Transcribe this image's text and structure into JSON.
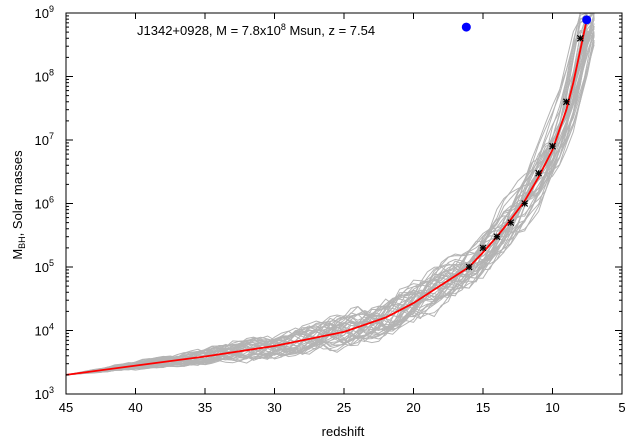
{
  "chart_data": {
    "type": "line",
    "title": "",
    "xlabel": "redshift",
    "ylabel": {
      "main": "M",
      "subscript": "BH",
      "rest": ", Solar masses"
    },
    "x_reversed": true,
    "xlim": [
      45,
      5
    ],
    "ylim": [
      1000,
      1000000000
    ],
    "y_scale": "log",
    "x_ticks": [
      "45",
      "40",
      "35",
      "30",
      "25",
      "20",
      "15",
      "10",
      "5"
    ],
    "y_ticks": [
      {
        "base": "10",
        "exp": "3"
      },
      {
        "base": "10",
        "exp": "4"
      },
      {
        "base": "10",
        "exp": "5"
      },
      {
        "base": "10",
        "exp": "6"
      },
      {
        "base": "10",
        "exp": "7"
      },
      {
        "base": "10",
        "exp": "8"
      },
      {
        "base": "10",
        "exp": "9"
      }
    ],
    "grid": false,
    "annotation": {
      "prefix": "J1342+0928, M = 7.8x10",
      "sup": "8",
      "suffix": " Msun, z = 7.54"
    },
    "colors": {
      "fit": "#ff0000",
      "trees": "#b4b4b4",
      "points": "#0000ff",
      "markers": "#000000"
    },
    "series": [
      {
        "kind": "fit",
        "x": [
          45,
          40,
          35,
          30,
          25,
          22,
          20,
          18,
          16,
          15,
          14,
          13,
          12,
          11,
          10,
          9,
          8.5,
          8,
          7.54
        ],
        "y": [
          2000,
          2800,
          3900,
          5700,
          9500,
          16000,
          27000,
          52000,
          100000,
          170000,
          300000,
          560000,
          1100000,
          2600000,
          7000000,
          30000000,
          80000000,
          260000000,
          780000000
        ]
      },
      {
        "kind": "markers",
        "x": [
          16,
          15,
          14,
          13,
          12,
          11,
          10,
          9,
          8
        ],
        "y": [
          100000,
          200000,
          300000,
          500000,
          1000000,
          3000000,
          8000000,
          40000000,
          400000000
        ]
      },
      {
        "kind": "points",
        "x": [
          16.2,
          7.54
        ],
        "y": [
          600000000,
          780000000
        ]
      }
    ]
  }
}
